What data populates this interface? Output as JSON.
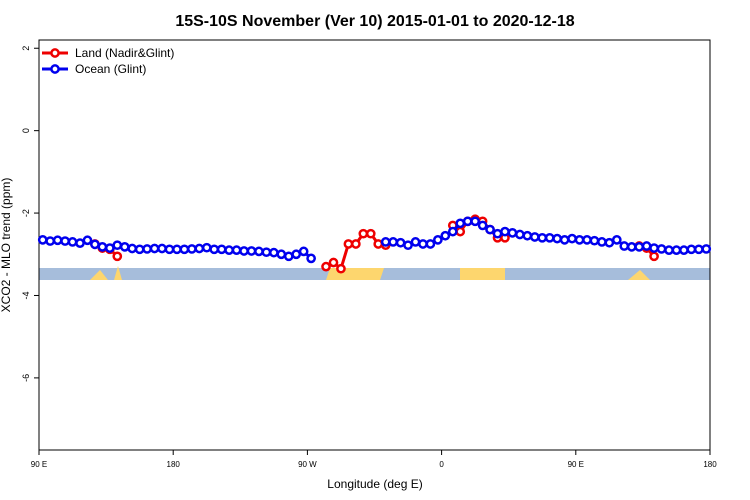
{
  "chart_data": {
    "type": "line",
    "title": "15S-10S November (Ver 10)   2015-01-01 to 2020-12-18",
    "x_label": "Longitude (deg E)",
    "y_label": "XCO2 - MLO trend (ppm)",
    "xlim": [
      90,
      540
    ],
    "xticks": [
      {
        "value": 90,
        "label": "90 E"
      },
      {
        "value": 180,
        "label": "180"
      },
      {
        "value": 270,
        "label": "90 W"
      },
      {
        "value": 360,
        "label": "0"
      },
      {
        "value": 450,
        "label": "90 E"
      },
      {
        "value": 540,
        "label": "180"
      }
    ],
    "ylim": [
      -7.75,
      2.2
    ],
    "yticks": [
      2,
      0,
      -2,
      -4,
      -6
    ],
    "legend": "top-left",
    "series": [
      {
        "name": "Land (Nadir&Glint)",
        "color": "#ee0000",
        "x": [
          127.5,
          132.5,
          137.5,
          142.5,
          147.5,
          282.5,
          287.5,
          292.5,
          297.5,
          302.5,
          307.5,
          312.5,
          317.5,
          322.5,
          327.5,
          367.5,
          372.5,
          377.5,
          382.5,
          387.5,
          392.5,
          397.5,
          402.5,
          407.5,
          492.5,
          497.5,
          502.5
        ],
        "values": [
          -2.75,
          -2.85,
          -2.88,
          -3.05,
          null,
          -3.3,
          -3.2,
          -3.35,
          -2.75,
          -2.75,
          -2.5,
          -2.5,
          -2.75,
          -2.78,
          null,
          -2.3,
          -2.45,
          -2.2,
          -2.15,
          -2.2,
          -2.4,
          -2.6,
          -2.6,
          null,
          -2.8,
          -2.85,
          -3.05
        ]
      },
      {
        "name": "Ocean (Glint)",
        "color": "#0000ee",
        "x": [
          92.5,
          97.5,
          102.5,
          107.5,
          112.5,
          117.5,
          122.5,
          127.5,
          132.5,
          137.5,
          142.5,
          147.5,
          152.5,
          157.5,
          162.5,
          167.5,
          172.5,
          177.5,
          182.5,
          187.5,
          192.5,
          197.5,
          202.5,
          207.5,
          212.5,
          217.5,
          222.5,
          227.5,
          232.5,
          237.5,
          242.5,
          247.5,
          252.5,
          257.5,
          262.5,
          267.5,
          272.5,
          277.5,
          282.5,
          287.5,
          292.5,
          297.5,
          302.5,
          307.5,
          312.5,
          317.5,
          322.5,
          327.5,
          332.5,
          337.5,
          342.5,
          347.5,
          352.5,
          357.5,
          362.5,
          367.5,
          372.5,
          377.5,
          382.5,
          387.5,
          392.5,
          397.5,
          402.5,
          407.5,
          412.5,
          417.5,
          422.5,
          427.5,
          432.5,
          437.5,
          442.5,
          447.5,
          452.5,
          457.5,
          462.5,
          467.5,
          472.5,
          477.5,
          482.5,
          487.5,
          492.5,
          497.5,
          502.5,
          507.5,
          512.5,
          517.5,
          522.5,
          527.5,
          532.5,
          537.5
        ],
        "values": [
          -2.65,
          -2.68,
          -2.66,
          -2.68,
          -2.7,
          -2.73,
          -2.66,
          -2.76,
          -2.82,
          -2.85,
          -2.78,
          -2.82,
          -2.86,
          -2.88,
          -2.87,
          -2.86,
          -2.86,
          -2.88,
          -2.88,
          -2.88,
          -2.87,
          -2.86,
          -2.84,
          -2.88,
          -2.88,
          -2.9,
          -2.9,
          -2.92,
          -2.92,
          -2.93,
          -2.95,
          -2.96,
          -3.0,
          -3.05,
          -3.0,
          -2.93,
          -3.1,
          null,
          null,
          null,
          null,
          null,
          null,
          null,
          null,
          null,
          -2.7,
          -2.7,
          -2.72,
          -2.78,
          -2.7,
          -2.75,
          -2.75,
          -2.65,
          -2.55,
          -2.45,
          -2.25,
          -2.2,
          -2.2,
          -2.3,
          -2.4,
          -2.5,
          -2.45,
          -2.48,
          -2.52,
          -2.55,
          -2.58,
          -2.6,
          -2.6,
          -2.62,
          -2.65,
          -2.62,
          -2.65,
          -2.65,
          -2.67,
          -2.7,
          -2.72,
          -2.65,
          -2.8,
          -2.82,
          -2.82,
          -2.8,
          -2.85,
          -2.87,
          -2.9,
          -2.9,
          -2.9,
          -2.88,
          -2.88,
          -2.87
        ]
      }
    ]
  }
}
